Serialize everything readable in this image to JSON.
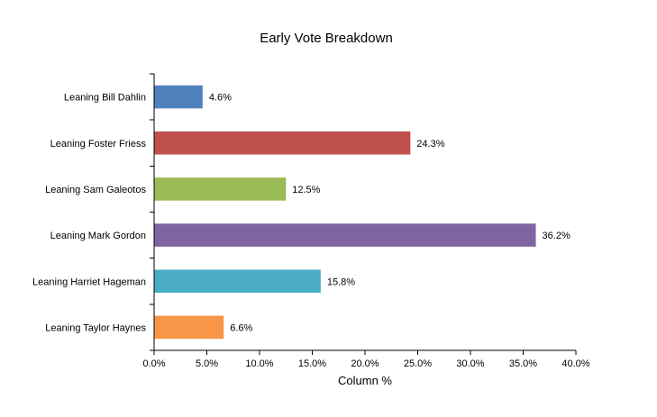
{
  "chart_data": {
    "type": "bar",
    "orientation": "horizontal",
    "title": "Early Vote Breakdown",
    "xlabel": "Column %",
    "ylabel": "",
    "categories": [
      "Leaning Bill Dahlin",
      "Leaning Foster Friess",
      "Leaning Sam Galeotos",
      "Leaning Mark Gordon",
      "Leaning Harriet Hageman",
      "Leaning Taylor Haynes"
    ],
    "values": [
      4.6,
      24.3,
      12.5,
      36.2,
      15.8,
      6.6
    ],
    "value_labels": [
      "4.6%",
      "24.3%",
      "12.5%",
      "36.2%",
      "15.8%",
      "6.6%"
    ],
    "colors": [
      "#4f81bd",
      "#c0504d",
      "#9bbb59",
      "#8064a2",
      "#4bacc6",
      "#f79646"
    ],
    "xlim": [
      0,
      40
    ],
    "x_ticks": [
      0,
      5,
      10,
      15,
      20,
      25,
      30,
      35,
      40
    ],
    "x_tick_labels": [
      "0.0%",
      "5.0%",
      "10.0%",
      "15.0%",
      "20.0%",
      "25.0%",
      "30.0%",
      "35.0%",
      "40.0%"
    ],
    "grid": false,
    "legend": "none"
  }
}
